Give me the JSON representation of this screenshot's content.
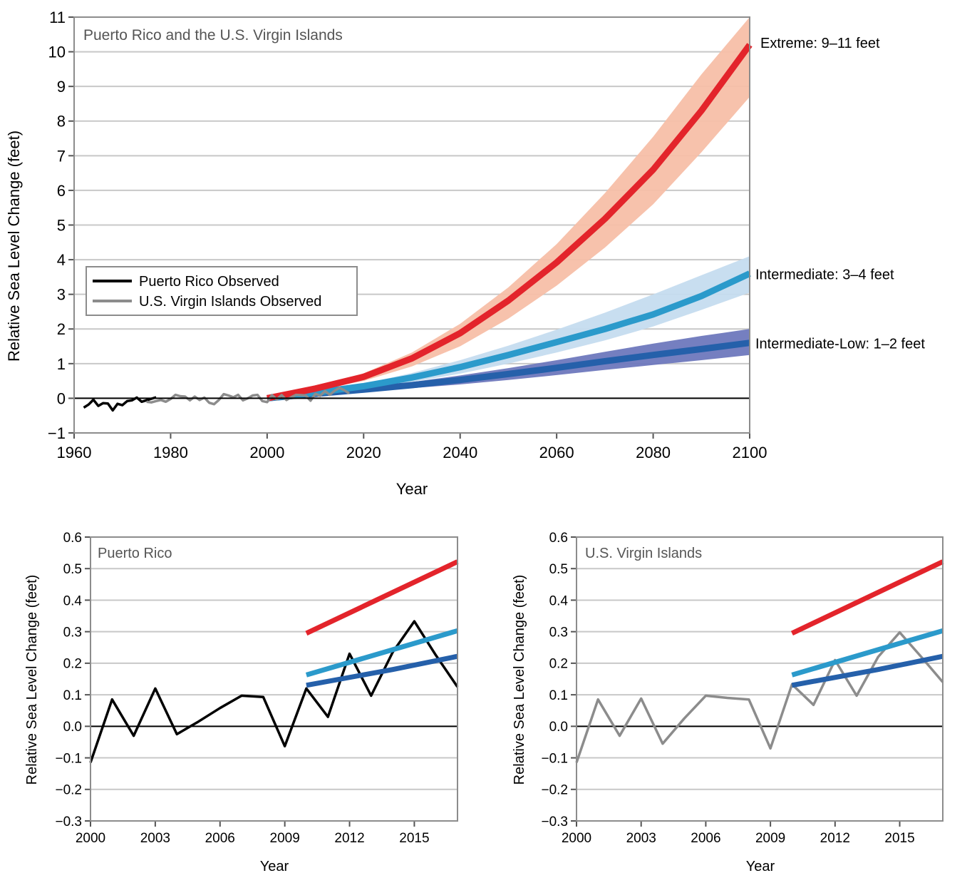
{
  "chart_data": [
    {
      "type": "line",
      "title": "Puerto Rico and the U.S. Virgin Islands",
      "xlabel": "Year",
      "ylabel": "Relative Sea Level Change (feet)",
      "xlim": [
        1960,
        2100
      ],
      "ylim": [
        -1,
        11
      ],
      "xticks": [
        1960,
        1980,
        2000,
        2020,
        2040,
        2060,
        2080,
        2100
      ],
      "yticks": [
        -1,
        0,
        1,
        2,
        3,
        4,
        5,
        6,
        7,
        8,
        9,
        10,
        11
      ],
      "ytick_labels": [
        "−1",
        "0",
        "1",
        "2",
        "3",
        "4",
        "5",
        "6",
        "7",
        "8",
        "9",
        "10",
        "11"
      ],
      "grid": true,
      "legend": {
        "placement": "center-left",
        "entries": [
          "Puerto Rico Observed",
          "U.S. Virgin Islands Observed"
        ]
      },
      "observed": [
        {
          "name": "Puerto Rico Observed",
          "color": "#000000",
          "x": [
            1962,
            1963,
            1964,
            1965,
            1966,
            1967,
            1968,
            1969,
            1970,
            1971,
            1972,
            1973,
            1974,
            1977
          ],
          "y": [
            -0.27,
            -0.18,
            -0.04,
            -0.22,
            -0.14,
            -0.15,
            -0.35,
            -0.16,
            -0.2,
            -0.08,
            -0.06,
            0.02,
            -0.1,
            0.03
          ]
        },
        {
          "name": "U.S. Virgin Islands Observed",
          "color": "#8c8c8c",
          "x": [
            1975,
            1976,
            1977,
            1978,
            1979,
            1980,
            1981,
            1982,
            1983,
            1984,
            1985,
            1986,
            1987,
            1988,
            1989,
            1990,
            1991,
            1992,
            1993,
            1994,
            1995,
            1996,
            1997,
            1998,
            1999,
            2000,
            2001,
            2002,
            2003,
            2004,
            2005,
            2006,
            2007,
            2008,
            2009,
            2010,
            2011,
            2012,
            2013,
            2014,
            2015,
            2016,
            2017
          ],
          "y": [
            -0.1,
            -0.12,
            -0.08,
            -0.05,
            -0.1,
            -0.02,
            0.1,
            0.06,
            0.05,
            -0.06,
            0.05,
            -0.05,
            0.02,
            -0.13,
            -0.17,
            -0.05,
            0.12,
            0.08,
            0.03,
            0.1,
            -0.06,
            0.0,
            0.08,
            0.1,
            -0.08,
            -0.11,
            0.09,
            -0.03,
            0.09,
            -0.05,
            0.03,
            0.1,
            0.09,
            0.08,
            -0.07,
            0.13,
            0.07,
            0.21,
            0.1,
            0.22,
            0.3,
            0.23,
            0.14
          ]
        }
      ],
      "scenarios": [
        {
          "name": "Extreme",
          "label": "Extreme: 9–11 feet",
          "color": "#e3242b",
          "band_color": "#f7bfa8",
          "x": [
            2000,
            2010,
            2020,
            2030,
            2040,
            2050,
            2060,
            2070,
            2080,
            2090,
            2100
          ],
          "y": [
            0.0,
            0.28,
            0.62,
            1.15,
            1.88,
            2.82,
            3.92,
            5.18,
            6.6,
            8.3,
            10.2
          ],
          "low": [
            0.0,
            0.24,
            0.5,
            0.92,
            1.5,
            2.3,
            3.25,
            4.35,
            5.6,
            7.1,
            8.7
          ],
          "high": [
            0.0,
            0.31,
            0.72,
            1.32,
            2.15,
            3.2,
            4.45,
            5.92,
            7.55,
            9.35,
            11.0
          ]
        },
        {
          "name": "Intermediate",
          "label": "Intermediate: 3–4 feet",
          "color": "#2b9acb",
          "band_color": "#c5dcef",
          "x": [
            2000,
            2010,
            2020,
            2030,
            2040,
            2050,
            2060,
            2070,
            2080,
            2090,
            2100
          ],
          "y": [
            0.0,
            0.16,
            0.35,
            0.6,
            0.9,
            1.25,
            1.62,
            2.0,
            2.42,
            2.95,
            3.6
          ],
          "low": [
            0.0,
            0.13,
            0.28,
            0.47,
            0.71,
            1.0,
            1.32,
            1.67,
            2.07,
            2.55,
            3.05
          ],
          "high": [
            0.0,
            0.18,
            0.42,
            0.73,
            1.1,
            1.52,
            1.98,
            2.47,
            3.0,
            3.55,
            4.1
          ]
        },
        {
          "name": "Intermediate-Low",
          "label": "Intermediate-Low: 1–2 feet",
          "color": "#2560aa",
          "band_color": "#6e78bd",
          "x": [
            2000,
            2010,
            2020,
            2030,
            2040,
            2050,
            2060,
            2070,
            2080,
            2090,
            2100
          ],
          "y": [
            0.0,
            0.13,
            0.25,
            0.38,
            0.53,
            0.7,
            0.88,
            1.07,
            1.25,
            1.42,
            1.6
          ],
          "low": [
            0.0,
            0.1,
            0.19,
            0.29,
            0.4,
            0.53,
            0.67,
            0.82,
            0.96,
            1.1,
            1.25
          ],
          "high": [
            0.0,
            0.15,
            0.3,
            0.47,
            0.66,
            0.87,
            1.1,
            1.34,
            1.58,
            1.8,
            2.0
          ]
        }
      ]
    },
    {
      "type": "line",
      "title": "Puerto Rico",
      "xlabel": "Year",
      "ylabel": "Relative Sea Level Change (feet)",
      "xlim": [
        2000,
        2017
      ],
      "ylim": [
        -0.3,
        0.6
      ],
      "xticks": [
        2000,
        2003,
        2006,
        2009,
        2012,
        2015
      ],
      "yticks": [
        -0.3,
        -0.2,
        -0.1,
        0.0,
        0.1,
        0.2,
        0.3,
        0.4,
        0.5,
        0.6
      ],
      "ytick_labels": [
        "−0.3",
        "−0.2",
        "−0.1",
        "0.0",
        "0.1",
        "0.2",
        "0.3",
        "0.4",
        "0.5",
        "0.6"
      ],
      "grid": true,
      "series": [
        {
          "name": "Puerto Rico Observed",
          "color": "#000000",
          "x": [
            2000,
            2001,
            2002,
            2003,
            2004,
            2005,
            2006,
            2007,
            2008,
            2009,
            2010,
            2011,
            2012,
            2013,
            2014,
            2015,
            2016,
            2017
          ],
          "y": [
            -0.115,
            0.085,
            -0.03,
            0.12,
            -0.025,
            0.015,
            0.058,
            0.097,
            0.093,
            -0.063,
            0.12,
            0.03,
            0.23,
            0.097,
            0.235,
            0.333,
            0.225,
            0.125
          ]
        },
        {
          "name": "Extreme",
          "color": "#e3242b",
          "x": [
            2010,
            2017
          ],
          "y": [
            0.295,
            0.522
          ]
        },
        {
          "name": "Intermediate",
          "color": "#2b9acb",
          "x": [
            2010,
            2017
          ],
          "y": [
            0.163,
            0.303
          ]
        },
        {
          "name": "Intermediate-Low",
          "color": "#2560aa",
          "x": [
            2010,
            2014,
            2017
          ],
          "y": [
            0.13,
            0.18,
            0.222
          ]
        }
      ]
    },
    {
      "type": "line",
      "title": "U.S. Virgin Islands",
      "xlabel": "Year",
      "ylabel": "Relative Sea Level Change (feet)",
      "xlim": [
        2000,
        2017
      ],
      "ylim": [
        -0.3,
        0.6
      ],
      "xticks": [
        2000,
        2003,
        2006,
        2009,
        2012,
        2015
      ],
      "yticks": [
        -0.3,
        -0.2,
        -0.1,
        0.0,
        0.1,
        0.2,
        0.3,
        0.4,
        0.5,
        0.6
      ],
      "ytick_labels": [
        "−0.3",
        "−0.2",
        "−0.1",
        "0.0",
        "0.1",
        "0.2",
        "0.3",
        "0.4",
        "0.5",
        "0.6"
      ],
      "grid": true,
      "series": [
        {
          "name": "U.S. Virgin Islands Observed",
          "color": "#8c8c8c",
          "x": [
            2000,
            2001,
            2002,
            2003,
            2004,
            2005,
            2006,
            2007,
            2008,
            2009,
            2010,
            2011,
            2012,
            2013,
            2014,
            2015,
            2016,
            2017
          ],
          "y": [
            -0.115,
            0.085,
            -0.03,
            0.088,
            -0.055,
            0.025,
            0.097,
            0.09,
            0.085,
            -0.07,
            0.133,
            0.068,
            0.21,
            0.097,
            0.22,
            0.298,
            0.22,
            0.14
          ]
        },
        {
          "name": "Extreme",
          "color": "#e3242b",
          "x": [
            2010,
            2017
          ],
          "y": [
            0.295,
            0.522
          ]
        },
        {
          "name": "Intermediate",
          "color": "#2b9acb",
          "x": [
            2010,
            2017
          ],
          "y": [
            0.163,
            0.303
          ]
        },
        {
          "name": "Intermediate-Low",
          "color": "#2560aa",
          "x": [
            2010,
            2014,
            2017
          ],
          "y": [
            0.13,
            0.18,
            0.222
          ]
        }
      ]
    }
  ]
}
